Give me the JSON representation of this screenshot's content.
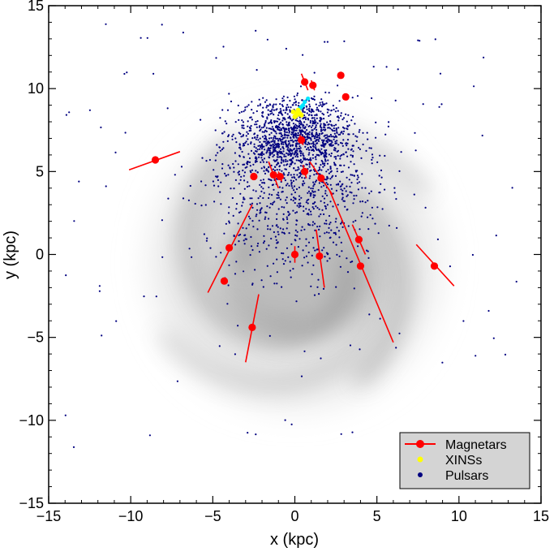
{
  "chart_data": {
    "type": "scatter",
    "title": "",
    "xlabel": "x (kpc)",
    "ylabel": "y (kpc)",
    "xlim": [
      -15,
      15
    ],
    "ylim": [
      -15,
      15
    ],
    "xticks": [
      -15,
      -10,
      -5,
      0,
      5,
      10,
      15
    ],
    "yticks": [
      -15,
      -10,
      -5,
      0,
      5,
      10,
      15
    ],
    "xtick_labels": [
      "−15",
      "−10",
      "−5",
      "0",
      "5",
      "10",
      "15"
    ],
    "ytick_labels": [
      "−15",
      "−10",
      "−5",
      "0",
      "5",
      "10",
      "15"
    ],
    "grid": false,
    "legend": {
      "position": "bottom-right",
      "entries": [
        {
          "label": "Magnetars",
          "color": "#ff0000",
          "marker": "circle-with-line"
        },
        {
          "label": "XINSs",
          "color": "#ffff00",
          "marker": "circle"
        },
        {
          "label": "Pulsars",
          "color": "#000080",
          "marker": "circle"
        }
      ]
    },
    "background": "grey spiral-arm model of the Milky Way",
    "series": [
      {
        "name": "Magnetars",
        "color": "#ff0000",
        "points": [
          {
            "x": 0.6,
            "y": 10.4,
            "err": [
              [
                0.4,
                10.9
              ],
              [
                0.8,
                9.9
              ]
            ]
          },
          {
            "x": 1.1,
            "y": 10.2,
            "err": [
              [
                1.0,
                10.5
              ],
              [
                1.2,
                9.9
              ]
            ]
          },
          {
            "x": 2.8,
            "y": 10.8,
            "err": [
              [
                2.6,
                10.7
              ],
              [
                3.0,
                10.9
              ]
            ]
          },
          {
            "x": 3.1,
            "y": 9.5,
            "err": [
              [
                3.0,
                9.7
              ],
              [
                3.2,
                9.3
              ]
            ]
          },
          {
            "x": 0.4,
            "y": 6.9,
            "err": [
              [
                0.3,
                7.2
              ],
              [
                0.5,
                6.6
              ]
            ]
          },
          {
            "x": -8.5,
            "y": 5.7,
            "err": [
              [
                -10.1,
                5.1
              ],
              [
                -7.0,
                6.2
              ]
            ]
          },
          {
            "x": 0.6,
            "y": 5.0,
            "err": [
              [
                0.5,
                5.4
              ],
              [
                0.7,
                4.6
              ]
            ]
          },
          {
            "x": -2.5,
            "y": 4.7,
            "err": [
              [
                -2.6,
                4.9
              ],
              [
                -2.4,
                4.5
              ]
            ]
          },
          {
            "x": -1.3,
            "y": 4.8,
            "err": [
              [
                -1.6,
                5.6
              ],
              [
                -1.0,
                4.0
              ]
            ]
          },
          {
            "x": -0.9,
            "y": 4.7,
            "err": [
              [
                -1.0,
                5.0
              ],
              [
                -0.8,
                4.4
              ]
            ]
          },
          {
            "x": 1.6,
            "y": 4.6,
            "err": [
              [
                0.9,
                5.6
              ],
              [
                2.3,
                3.6
              ]
            ]
          },
          {
            "x": -4.0,
            "y": 0.4,
            "err": [
              [
                -2.6,
                3.0
              ],
              [
                -5.3,
                -2.3
              ]
            ]
          },
          {
            "x": -4.3,
            "y": -1.6,
            "err": [
              [
                -4.5,
                -1.5
              ],
              [
                -4.1,
                -1.7
              ]
            ]
          },
          {
            "x": 0.0,
            "y": 0.0,
            "err": [
              [
                0.0,
                0.5
              ],
              [
                0.0,
                -0.5
              ]
            ]
          },
          {
            "x": 1.5,
            "y": -0.1,
            "err": [
              [
                1.3,
                1.5
              ],
              [
                1.8,
                -2.0
              ]
            ]
          },
          {
            "x": 3.9,
            "y": 0.9,
            "err": [
              [
                3.5,
                1.8
              ],
              [
                4.3,
                0.0
              ]
            ]
          },
          {
            "x": 4.0,
            "y": -0.7,
            "err": [
              [
                2.1,
                3.9
              ],
              [
                6.0,
                -5.3
              ]
            ]
          },
          {
            "x": 8.5,
            "y": -0.7,
            "err": [
              [
                7.4,
                0.6
              ],
              [
                9.7,
                -1.9
              ]
            ]
          },
          {
            "x": -2.6,
            "y": -4.4,
            "err": [
              [
                -2.2,
                -2.4
              ],
              [
                -3.0,
                -6.5
              ]
            ]
          }
        ]
      },
      {
        "name": "XINSs",
        "color": "#ffff00",
        "points": [
          {
            "x": -0.1,
            "y": 8.6
          },
          {
            "x": 0.1,
            "y": 8.4
          },
          {
            "x": 0.3,
            "y": 8.5
          },
          {
            "x": 0.0,
            "y": 8.3
          },
          {
            "x": 0.2,
            "y": 8.7
          },
          {
            "x": 0.4,
            "y": 8.4
          },
          {
            "x": 0.15,
            "y": 8.55
          }
        ]
      },
      {
        "name": "Nearby objects (cyan)",
        "color": "#00e5ff",
        "points": [
          {
            "x": 0.2,
            "y": 8.6
          },
          {
            "x": 0.4,
            "y": 8.9
          },
          {
            "x": 0.6,
            "y": 9.2
          },
          {
            "x": 0.8,
            "y": 9.4
          },
          {
            "x": 0.3,
            "y": 8.8
          },
          {
            "x": 0.5,
            "y": 9.0
          }
        ]
      },
      {
        "name": "Pulsars",
        "color": "#000080",
        "count_approx": 2000,
        "distribution": "dense wedge toward Galactic centre from the Sun at (0, 8.5 kpc), densest for y between 3 and 10 kpc"
      }
    ]
  }
}
